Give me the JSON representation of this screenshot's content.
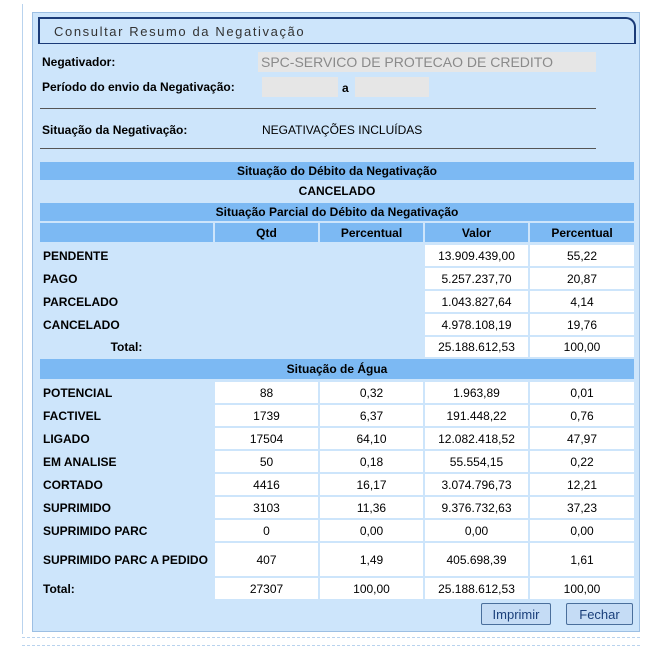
{
  "header": {
    "title": "Consultar Resumo da Negativação"
  },
  "form": {
    "negativador_label": "Negativador:",
    "negativador_value": "SPC-SERVICO DE PROTECAO DE CREDITO",
    "periodo_label": "Período do envio da Negativação:",
    "periodo_separator": "a",
    "situacao_label": "Situação da Negativação:",
    "situacao_value": "NEGATIVAÇÕES INCLUÍDAS"
  },
  "debito": {
    "title": "Situação do Débito da Negativação",
    "status": "CANCELADO",
    "parcial_title": "Situação Parcial do Débito da Negativação",
    "columns": [
      "Qtd",
      "Percentual",
      "Valor",
      "Percentual"
    ],
    "rows": [
      [
        "PENDENTE",
        "13.909.439,00",
        "55,22"
      ],
      [
        "PAGO",
        "5.257.237,70",
        "20,87"
      ],
      [
        "PARCELADO",
        "1.043.827,64",
        "4,14"
      ],
      [
        "CANCELADO",
        "4.978.108,19",
        "19,76"
      ]
    ],
    "total": [
      "Total:",
      "25.188.612,53",
      "100,00"
    ]
  },
  "agua": {
    "title": "Situação de Água",
    "rows": [
      [
        "POTENCIAL",
        "88",
        "0,32",
        "1.963,89",
        "0,01"
      ],
      [
        "FACTIVEL",
        "1739",
        "6,37",
        "191.448,22",
        "0,76"
      ],
      [
        "LIGADO",
        "17504",
        "64,10",
        "12.082.418,52",
        "47,97"
      ],
      [
        "EM ANALISE",
        "50",
        "0,18",
        "55.554,15",
        "0,22"
      ],
      [
        "CORTADO",
        "4416",
        "16,17",
        "3.074.796,73",
        "12,21"
      ],
      [
        "SUPRIMIDO",
        "3103",
        "11,36",
        "9.376.732,63",
        "37,23"
      ],
      [
        "SUPRIMIDO PARC",
        "0",
        "0,00",
        "0,00",
        "0,00"
      ],
      [
        "SUPRIMIDO PARC A PEDIDO",
        "407",
        "1,49",
        "405.698,39",
        "1,61"
      ]
    ],
    "total": [
      "Total:",
      "27307",
      "100,00",
      "25.188.612,53",
      "100,00"
    ]
  },
  "buttons": [
    "Imprimir",
    "Fechar"
  ]
}
